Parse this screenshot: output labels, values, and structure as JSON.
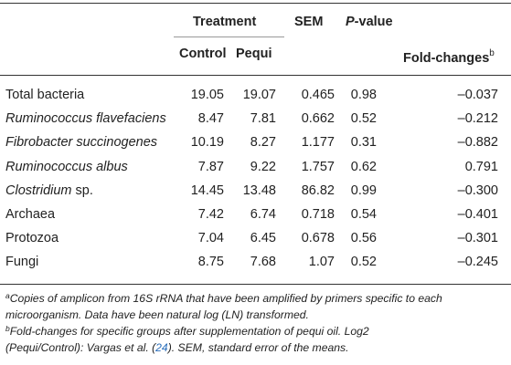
{
  "header": {
    "treatment": "Treatment",
    "sem": "SEM",
    "pvalue_p": "P",
    "pvalue_rest": "-value",
    "control": "Control",
    "pequi": "Pequi",
    "fold": "Fold-changes",
    "fold_sup": "b"
  },
  "rows": [
    {
      "name": "Total bacteria",
      "italic": false,
      "suffix": "",
      "control": "19.05",
      "pequi": "19.07",
      "sem": "0.465",
      "p": "0.98",
      "fold": "–0.037"
    },
    {
      "name": "Ruminococcus flavefaciens",
      "italic": true,
      "suffix": "",
      "control": "8.47",
      "pequi": "7.81",
      "sem": "0.662",
      "p": "0.52",
      "fold": "–0.212"
    },
    {
      "name": "Fibrobacter succinogenes",
      "italic": true,
      "suffix": "",
      "control": "10.19",
      "pequi": "8.27",
      "sem": "1.177",
      "p": "0.31",
      "fold": "–0.882"
    },
    {
      "name": "Ruminococcus albus",
      "italic": true,
      "suffix": "",
      "control": "7.87",
      "pequi": "9.22",
      "sem": "1.757",
      "p": "0.62",
      "fold": "0.791"
    },
    {
      "name": "Clostridium",
      "italic": true,
      "suffix": " sp.",
      "control": "14.45",
      "pequi": "13.48",
      "sem": "86.82",
      "p": "0.99",
      "fold": "–0.300"
    },
    {
      "name": "Archaea",
      "italic": false,
      "suffix": "",
      "control": "7.42",
      "pequi": "6.74",
      "sem": "0.718",
      "p": "0.54",
      "fold": "–0.401"
    },
    {
      "name": "Protozoa",
      "italic": false,
      "suffix": "",
      "control": "7.04",
      "pequi": "6.45",
      "sem": "0.678",
      "p": "0.56",
      "fold": "–0.301"
    },
    {
      "name": "Fungi",
      "italic": false,
      "suffix": "",
      "control": "8.75",
      "pequi": "7.68",
      "sem": "1.07",
      "p": "0.52",
      "fold": "–0.245"
    }
  ],
  "footnotes": {
    "a_sup": "a",
    "a_line1": "Copies of amplicon from 16S rRNA that have been amplified by primers specific to each",
    "a_line2": "microorganism. Data have been natural log (LN) transformed.",
    "b_sup": "b",
    "b_line1": "Fold-changes for specific groups after supplementation of pequi oil. Log2",
    "b_line2_pre": "(Pequi/Control): Vargas et al. (",
    "b_ref": "24",
    "b_line2_post": "). SEM, standard error of the means."
  }
}
